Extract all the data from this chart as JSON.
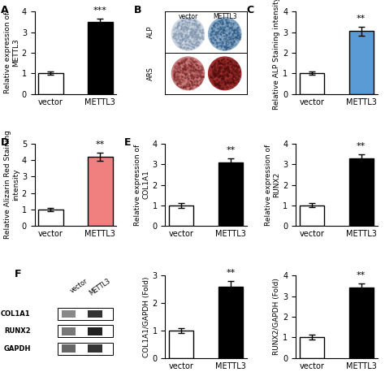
{
  "panel_A": {
    "categories": [
      "vector",
      "METTL3"
    ],
    "values": [
      1.0,
      3.5
    ],
    "errors": [
      0.08,
      0.15
    ],
    "colors": [
      "white",
      "black"
    ],
    "ylabel": "Relative expression of\nMETTL3",
    "ylim": [
      0,
      4
    ],
    "yticks": [
      0,
      1,
      2,
      3,
      4
    ],
    "significance": "***",
    "label": "A"
  },
  "panel_C": {
    "categories": [
      "vector",
      "METTL3"
    ],
    "values": [
      1.0,
      3.05
    ],
    "errors": [
      0.08,
      0.22
    ],
    "colors": [
      "white",
      "#5b9bd5"
    ],
    "ylabel": "Relative ALP Staining intensity",
    "ylim": [
      0,
      4
    ],
    "yticks": [
      0,
      1,
      2,
      3,
      4
    ],
    "significance": "**",
    "label": "C"
  },
  "panel_D": {
    "categories": [
      "vector",
      "METTL3"
    ],
    "values": [
      1.0,
      4.2
    ],
    "errors": [
      0.1,
      0.25
    ],
    "colors": [
      "white",
      "#f08080"
    ],
    "ylabel": "Relative Alizarin Red Staining\nintensity",
    "ylim": [
      0,
      5
    ],
    "yticks": [
      0,
      1,
      2,
      3,
      4,
      5
    ],
    "significance": "**",
    "label": "D"
  },
  "panel_E1": {
    "categories": [
      "vector",
      "METTL3"
    ],
    "values": [
      1.0,
      3.1
    ],
    "errors": [
      0.12,
      0.18
    ],
    "colors": [
      "white",
      "black"
    ],
    "ylabel": "Relative expression of\nCOL1A1",
    "ylim": [
      0,
      4
    ],
    "yticks": [
      0,
      1,
      2,
      3,
      4
    ],
    "significance": "**",
    "label": "E"
  },
  "panel_E2": {
    "categories": [
      "vector",
      "METTL3"
    ],
    "values": [
      1.0,
      3.3
    ],
    "errors": [
      0.1,
      0.18
    ],
    "colors": [
      "white",
      "black"
    ],
    "ylabel": "Relative expression of\nRUNX2",
    "ylim": [
      0,
      4
    ],
    "yticks": [
      0,
      1,
      2,
      3,
      4
    ],
    "significance": "**",
    "label": ""
  },
  "panel_F_bar1": {
    "categories": [
      "vector",
      "METTL3"
    ],
    "values": [
      1.0,
      2.6
    ],
    "errors": [
      0.08,
      0.2
    ],
    "colors": [
      "white",
      "black"
    ],
    "ylabel": "COL1A1/GAPDH (Fold)",
    "ylim": [
      0,
      3
    ],
    "yticks": [
      0,
      1,
      2,
      3
    ],
    "significance": "**",
    "label": ""
  },
  "panel_F_bar2": {
    "categories": [
      "vector",
      "METTL3"
    ],
    "values": [
      1.0,
      3.4
    ],
    "errors": [
      0.12,
      0.2
    ],
    "colors": [
      "white",
      "black"
    ],
    "ylabel": "RUNX2/GAPDH (Fold)",
    "ylim": [
      0,
      4
    ],
    "yticks": [
      0,
      1,
      2,
      3,
      4
    ],
    "significance": "**",
    "label": ""
  },
  "wb_bands": {
    "col1a1": {
      "vector": [
        0.12,
        0.22,
        0.65
      ],
      "mettl3": [
        0.48,
        0.22,
        0.65
      ]
    },
    "runx2": {
      "vector": [
        0.12,
        0.22,
        0.65
      ],
      "mettl3": [
        0.48,
        0.22,
        0.65
      ]
    },
    "gapdh": {
      "vector": [
        0.12,
        0.22,
        0.65
      ],
      "mettl3": [
        0.48,
        0.22,
        0.65
      ]
    }
  },
  "label_F": "F",
  "edgecolor": "black",
  "linewidth": 1.0,
  "bar_width": 0.5,
  "fontsize_tick": 7,
  "fontsize_label": 6.5,
  "fontsize_panel": 9,
  "fontsize_sig": 8,
  "capsize": 3
}
